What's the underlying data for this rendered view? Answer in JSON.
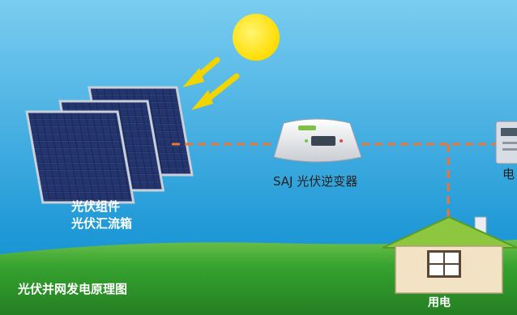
{
  "diagram": {
    "title": "光伏并网发电原理图",
    "nodes": {
      "pv_array": {
        "line1": "光伏组件",
        "line2": "光伏汇流箱"
      },
      "inverter": {
        "label": "SAJ 光伏逆变器",
        "brand_logo_text": "SAJ"
      },
      "meter": {
        "label": "电"
      },
      "house": {
        "label": "用电"
      }
    },
    "connections": [
      {
        "from": "pv_array",
        "to": "inverter",
        "style": "dashed"
      },
      {
        "from": "inverter",
        "to": "meter",
        "style": "dashed"
      },
      {
        "from": "inverter",
        "to": "house",
        "style": "dashed"
      }
    ]
  },
  "colors": {
    "sky_top": "#6ec6ec",
    "sky_bottom": "#1e98d6",
    "grass": "#2f9a2c",
    "wire": "#e8763a",
    "sun": "#ffe21a",
    "ray": "#f2d400",
    "panel": "#1c2a5a",
    "roof": "#8dc63f"
  },
  "icons": {
    "sun": "sun-icon",
    "rays": "sunlight-arrow-icon",
    "panels": "solar-panel-icon",
    "inverter": "inverter-icon",
    "meter": "electric-meter-icon",
    "house": "house-icon"
  }
}
